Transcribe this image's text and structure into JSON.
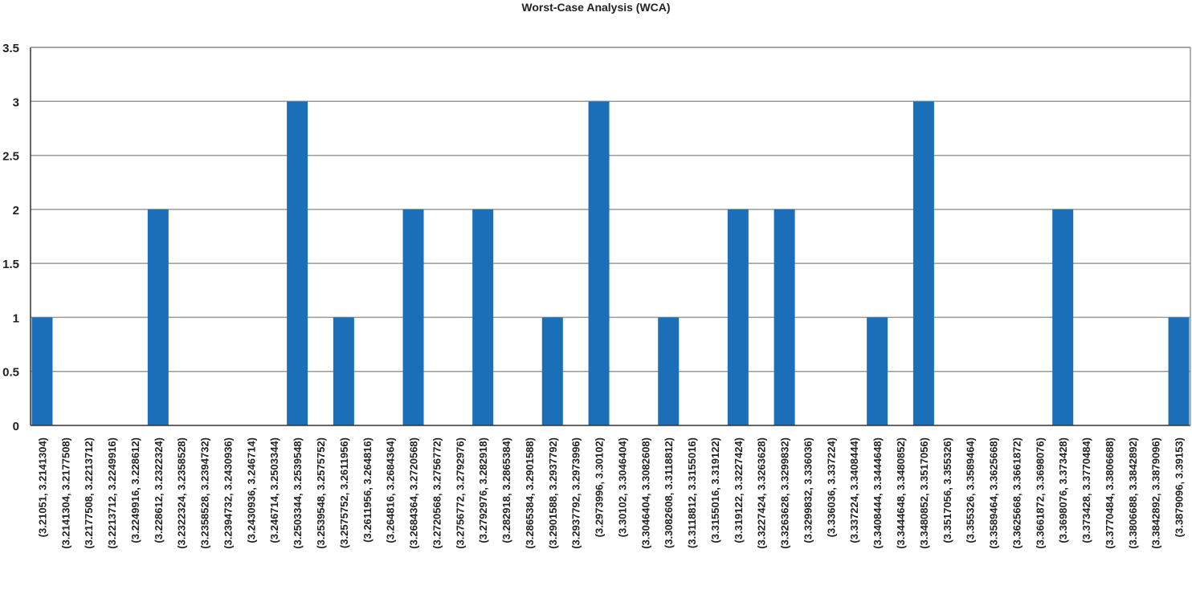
{
  "colors": {
    "bar": "#1a6fb8",
    "grid": "#999999",
    "axis": "#333333",
    "text": "#222222"
  },
  "chart_data": {
    "type": "bar",
    "title": "Worst-Case Analysis (WCA)",
    "xlabel": "",
    "ylabel": "",
    "ylim": [
      0,
      3.5
    ],
    "yticks": [
      "0",
      "0.5",
      "1",
      "1.5",
      "2",
      "2.5",
      "3",
      "3.5"
    ],
    "grid": true,
    "categories": [
      "(3.21051, 3.2141304)",
      "(3.2141304, 3.2177508)",
      "(3.2177508, 3.2213712)",
      "(3.2213712, 3.2249916)",
      "(3.2249916, 3.228612)",
      "(3.228612, 3.2322324)",
      "(3.2322324, 3.2358528)",
      "(3.2358528, 3.2394732)",
      "(3.2394732, 3.2430936)",
      "(3.2430936, 3.246714)",
      "(3.246714, 3.2503344)",
      "(3.2503344, 3.2539548)",
      "(3.2539548, 3.2575752)",
      "(3.2575752, 3.2611956)",
      "(3.2611956, 3.264816)",
      "(3.264816, 3.2684364)",
      "(3.2684364, 3.2720568)",
      "(3.2720568, 3.2756772)",
      "(3.2756772, 3.2792976)",
      "(3.2792976, 3.282918)",
      "(3.282918, 3.2865384)",
      "(3.2865384, 3.2901588)",
      "(3.2901588, 3.2937792)",
      "(3.2937792, 3.2973996)",
      "(3.2973996, 3.30102)",
      "(3.30102, 3.3046404)",
      "(3.3046404, 3.3082608)",
      "(3.3082608, 3.3118812)",
      "(3.3118812, 3.3155016)",
      "(3.3155016, 3.319122)",
      "(3.319122, 3.3227424)",
      "(3.3227424, 3.3263628)",
      "(3.3263628, 3.3299832)",
      "(3.3299832, 3.336036)",
      "(3.336036, 3.337224)",
      "(3.337224, 3.3408444)",
      "(3.3408444, 3.3444648)",
      "(3.3444648, 3.3480852)",
      "(3.3480852, 3.3517056)",
      "(3.3517056, 3.355326)",
      "(3.355326, 3.3589464)",
      "(3.3589464, 3.3625668)",
      "(3.3625668, 3.3661872)",
      "(3.3661872, 3.3698076)",
      "(3.3698076, 3.373428)",
      "(3.373428, 3.3770484)",
      "(3.3770484, 3.3806688)",
      "(3.3806688, 3.3842892)",
      "(3.3842892, 3.3879096)",
      "(3.3879096, 3.39153)"
    ],
    "values": [
      1,
      0,
      0,
      0,
      0,
      2,
      0,
      0,
      0,
      0,
      0,
      3,
      0,
      1,
      0,
      0,
      2,
      0,
      0,
      2,
      0,
      0,
      1,
      0,
      3,
      0,
      0,
      1,
      0,
      0,
      2,
      0,
      2,
      0,
      0,
      0,
      1,
      0,
      3,
      0,
      0,
      0,
      0,
      0,
      2,
      0,
      0,
      0,
      0,
      1
    ]
  }
}
